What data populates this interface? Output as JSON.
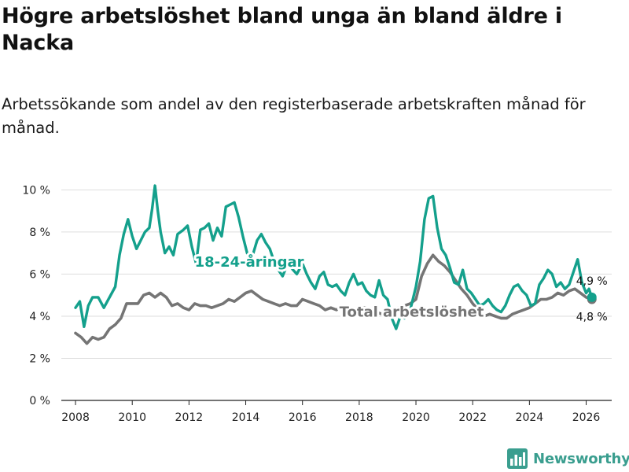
{
  "title": "Högre arbetslöshet bland unga än bland äldre i Nacka",
  "subtitle": "Arbetssökande som andel av den registerbaserade arbetskraften månad för månad.",
  "brand": {
    "name": "Newsworthy",
    "icon": "bar-chart-logo-icon"
  },
  "colors": {
    "youth": "#14a08c",
    "total": "#757575",
    "grid": "#dddddd",
    "axis": "#222222"
  },
  "chart_data": {
    "type": "line",
    "xlim": [
      2007.5,
      2026.9
    ],
    "ylim": [
      0,
      10.5
    ],
    "yticks": [
      0,
      2,
      4,
      6,
      8,
      10
    ],
    "ytick_labels": [
      "0 %",
      "2 %",
      "4 %",
      "6 %",
      "8 %",
      "10 %"
    ],
    "xticks": [
      2008,
      2010,
      2012,
      2014,
      2016,
      2018,
      2020,
      2022,
      2024,
      2026
    ],
    "xtick_labels": [
      "2008",
      "2010",
      "2012",
      "2014",
      "2016",
      "2018",
      "2020",
      "2022",
      "2024",
      "2026"
    ],
    "grid": true,
    "series": [
      {
        "name": "Total arbetslöshet",
        "label": "Total arbetslöshet",
        "end_label": "4,8 %",
        "color": "#757575",
        "points": [
          [
            2008.0,
            3.2
          ],
          [
            2008.2,
            3.0
          ],
          [
            2008.4,
            2.7
          ],
          [
            2008.6,
            3.0
          ],
          [
            2008.8,
            2.9
          ],
          [
            2009.0,
            3.0
          ],
          [
            2009.2,
            3.4
          ],
          [
            2009.4,
            3.6
          ],
          [
            2009.6,
            3.9
          ],
          [
            2009.8,
            4.6
          ],
          [
            2010.0,
            4.6
          ],
          [
            2010.2,
            4.6
          ],
          [
            2010.4,
            5.0
          ],
          [
            2010.6,
            5.1
          ],
          [
            2010.8,
            4.9
          ],
          [
            2011.0,
            5.1
          ],
          [
            2011.2,
            4.9
          ],
          [
            2011.4,
            4.5
          ],
          [
            2011.6,
            4.6
          ],
          [
            2011.8,
            4.4
          ],
          [
            2012.0,
            4.3
          ],
          [
            2012.2,
            4.6
          ],
          [
            2012.4,
            4.5
          ],
          [
            2012.6,
            4.5
          ],
          [
            2012.8,
            4.4
          ],
          [
            2013.0,
            4.5
          ],
          [
            2013.2,
            4.6
          ],
          [
            2013.4,
            4.8
          ],
          [
            2013.6,
            4.7
          ],
          [
            2013.8,
            4.9
          ],
          [
            2014.0,
            5.1
          ],
          [
            2014.2,
            5.2
          ],
          [
            2014.4,
            5.0
          ],
          [
            2014.6,
            4.8
          ],
          [
            2014.8,
            4.7
          ],
          [
            2015.0,
            4.6
          ],
          [
            2015.2,
            4.5
          ],
          [
            2015.4,
            4.6
          ],
          [
            2015.6,
            4.5
          ],
          [
            2015.8,
            4.5
          ],
          [
            2016.0,
            4.8
          ],
          [
            2016.2,
            4.7
          ],
          [
            2016.4,
            4.6
          ],
          [
            2016.6,
            4.5
          ],
          [
            2016.8,
            4.3
          ],
          [
            2017.0,
            4.4
          ],
          [
            2017.2,
            4.3
          ],
          [
            2017.4,
            4.5
          ],
          [
            2017.6,
            4.4
          ],
          [
            2017.8,
            4.3
          ],
          [
            2018.0,
            4.4
          ],
          [
            2018.2,
            4.4
          ],
          [
            2018.4,
            4.3
          ],
          [
            2018.6,
            4.2
          ],
          [
            2018.8,
            4.1
          ],
          [
            2019.0,
            4.1
          ],
          [
            2019.2,
            4.3
          ],
          [
            2019.4,
            4.4
          ],
          [
            2019.6,
            4.5
          ],
          [
            2019.8,
            4.6
          ],
          [
            2020.0,
            4.8
          ],
          [
            2020.2,
            5.9
          ],
          [
            2020.4,
            6.5
          ],
          [
            2020.6,
            6.9
          ],
          [
            2020.8,
            6.6
          ],
          [
            2021.0,
            6.4
          ],
          [
            2021.2,
            6.1
          ],
          [
            2021.4,
            5.7
          ],
          [
            2021.6,
            5.3
          ],
          [
            2021.8,
            5.0
          ],
          [
            2022.0,
            4.6
          ],
          [
            2022.2,
            4.3
          ],
          [
            2022.4,
            4.0
          ],
          [
            2022.6,
            4.1
          ],
          [
            2022.8,
            4.0
          ],
          [
            2023.0,
            3.9
          ],
          [
            2023.2,
            3.9
          ],
          [
            2023.4,
            4.1
          ],
          [
            2023.6,
            4.2
          ],
          [
            2023.8,
            4.3
          ],
          [
            2024.0,
            4.4
          ],
          [
            2024.2,
            4.6
          ],
          [
            2024.4,
            4.8
          ],
          [
            2024.6,
            4.8
          ],
          [
            2024.8,
            4.9
          ],
          [
            2025.0,
            5.1
          ],
          [
            2025.2,
            5.0
          ],
          [
            2025.4,
            5.2
          ],
          [
            2025.6,
            5.3
          ],
          [
            2025.8,
            5.1
          ],
          [
            2026.0,
            4.9
          ],
          [
            2026.2,
            4.8
          ]
        ]
      },
      {
        "name": "18-24-åringar",
        "label": "18-24-åringar",
        "end_label": "4,9 %",
        "color": "#14a08c",
        "points": [
          [
            2008.0,
            4.4
          ],
          [
            2008.15,
            4.7
          ],
          [
            2008.3,
            3.5
          ],
          [
            2008.45,
            4.5
          ],
          [
            2008.6,
            4.9
          ],
          [
            2008.8,
            4.9
          ],
          [
            2009.0,
            4.4
          ],
          [
            2009.2,
            4.9
          ],
          [
            2009.4,
            5.4
          ],
          [
            2009.55,
            6.9
          ],
          [
            2009.7,
            7.9
          ],
          [
            2009.85,
            8.6
          ],
          [
            2010.0,
            7.8
          ],
          [
            2010.15,
            7.2
          ],
          [
            2010.3,
            7.6
          ],
          [
            2010.45,
            8.0
          ],
          [
            2010.6,
            8.2
          ],
          [
            2010.7,
            9.1
          ],
          [
            2010.8,
            10.2
          ],
          [
            2010.9,
            9.0
          ],
          [
            2011.0,
            8.0
          ],
          [
            2011.15,
            7.0
          ],
          [
            2011.3,
            7.3
          ],
          [
            2011.45,
            6.9
          ],
          [
            2011.6,
            7.9
          ],
          [
            2011.8,
            8.1
          ],
          [
            2011.95,
            8.3
          ],
          [
            2012.1,
            7.3
          ],
          [
            2012.25,
            6.5
          ],
          [
            2012.4,
            8.1
          ],
          [
            2012.55,
            8.2
          ],
          [
            2012.7,
            8.4
          ],
          [
            2012.85,
            7.6
          ],
          [
            2013.0,
            8.2
          ],
          [
            2013.15,
            7.8
          ],
          [
            2013.3,
            9.2
          ],
          [
            2013.45,
            9.3
          ],
          [
            2013.6,
            9.4
          ],
          [
            2013.75,
            8.7
          ],
          [
            2013.9,
            7.8
          ],
          [
            2014.05,
            7.0
          ],
          [
            2014.2,
            6.7
          ],
          [
            2014.4,
            7.6
          ],
          [
            2014.55,
            7.9
          ],
          [
            2014.7,
            7.5
          ],
          [
            2014.85,
            7.2
          ],
          [
            2015.0,
            6.6
          ],
          [
            2015.15,
            6.2
          ],
          [
            2015.3,
            5.9
          ],
          [
            2015.45,
            6.4
          ],
          [
            2015.6,
            6.3
          ],
          [
            2015.8,
            6.0
          ],
          [
            2016.0,
            6.5
          ],
          [
            2016.15,
            6.0
          ],
          [
            2016.3,
            5.6
          ],
          [
            2016.45,
            5.3
          ],
          [
            2016.6,
            5.9
          ],
          [
            2016.75,
            6.1
          ],
          [
            2016.9,
            5.5
          ],
          [
            2017.05,
            5.4
          ],
          [
            2017.2,
            5.5
          ],
          [
            2017.35,
            5.2
          ],
          [
            2017.5,
            5.0
          ],
          [
            2017.65,
            5.6
          ],
          [
            2017.8,
            6.0
          ],
          [
            2017.95,
            5.5
          ],
          [
            2018.1,
            5.6
          ],
          [
            2018.25,
            5.2
          ],
          [
            2018.4,
            5.0
          ],
          [
            2018.55,
            4.9
          ],
          [
            2018.7,
            5.7
          ],
          [
            2018.85,
            5.0
          ],
          [
            2019.0,
            4.8
          ],
          [
            2019.15,
            3.9
          ],
          [
            2019.3,
            3.4
          ],
          [
            2019.45,
            4.0
          ],
          [
            2019.6,
            3.9
          ],
          [
            2019.8,
            4.3
          ],
          [
            2020.0,
            5.4
          ],
          [
            2020.15,
            6.6
          ],
          [
            2020.3,
            8.6
          ],
          [
            2020.45,
            9.6
          ],
          [
            2020.6,
            9.7
          ],
          [
            2020.75,
            8.2
          ],
          [
            2020.9,
            7.2
          ],
          [
            2021.05,
            6.9
          ],
          [
            2021.2,
            6.3
          ],
          [
            2021.35,
            5.6
          ],
          [
            2021.5,
            5.5
          ],
          [
            2021.65,
            6.2
          ],
          [
            2021.8,
            5.3
          ],
          [
            2021.95,
            5.1
          ],
          [
            2022.1,
            4.8
          ],
          [
            2022.25,
            4.5
          ],
          [
            2022.4,
            4.6
          ],
          [
            2022.55,
            4.8
          ],
          [
            2022.7,
            4.5
          ],
          [
            2022.85,
            4.3
          ],
          [
            2023.0,
            4.2
          ],
          [
            2023.15,
            4.5
          ],
          [
            2023.3,
            5.0
          ],
          [
            2023.45,
            5.4
          ],
          [
            2023.6,
            5.5
          ],
          [
            2023.75,
            5.2
          ],
          [
            2023.9,
            5.0
          ],
          [
            2024.05,
            4.5
          ],
          [
            2024.2,
            4.6
          ],
          [
            2024.35,
            5.5
          ],
          [
            2024.5,
            5.8
          ],
          [
            2024.65,
            6.2
          ],
          [
            2024.8,
            6.0
          ],
          [
            2024.95,
            5.4
          ],
          [
            2025.1,
            5.6
          ],
          [
            2025.25,
            5.3
          ],
          [
            2025.4,
            5.5
          ],
          [
            2025.55,
            6.1
          ],
          [
            2025.7,
            6.7
          ],
          [
            2025.85,
            5.6
          ],
          [
            2026.0,
            5.1
          ],
          [
            2026.1,
            5.3
          ],
          [
            2026.2,
            4.9
          ]
        ]
      }
    ]
  }
}
